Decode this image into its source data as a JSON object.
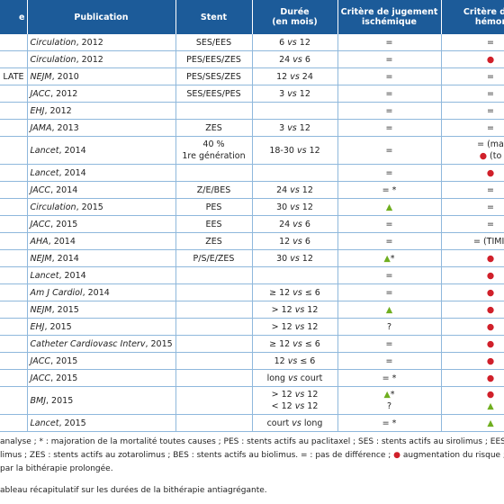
{
  "table": {
    "header": [
      "e",
      "Publication",
      "Stent",
      [
        "Durée",
        "(en mois)"
      ],
      [
        "Critère de jugement",
        "ischémique"
      ],
      [
        "Critère de j",
        "hémor"
      ]
    ],
    "rows": [
      [
        "",
        "Circulation, 2012",
        "SES/EES",
        "6 vs 12",
        "=",
        "="
      ],
      [
        "",
        "Circulation, 2012",
        "PES/EES/ZES",
        "24 vs 6",
        "=",
        "●"
      ],
      [
        "LATE",
        "NEJM, 2010",
        "PES/SES/ZES",
        "12 vs 24",
        "=",
        "="
      ],
      [
        "",
        "JACC, 2012",
        "SES/EES/PES",
        "3 vs 12",
        "=",
        "="
      ],
      [
        "",
        "EHJ, 2012",
        "",
        "",
        "=",
        "="
      ],
      [
        "",
        "JAMA, 2013",
        "ZES",
        "3 vs 12",
        "=",
        "="
      ],
      [
        "",
        "Lancet, 2014",
        [
          "40 %",
          "1re génération"
        ],
        "18-30 vs 12",
        "=",
        [
          "= (ma",
          "● (to"
        ]
      ],
      [
        "",
        "Lancet, 2014",
        "",
        "",
        "=",
        "●"
      ],
      [
        "",
        "JACC, 2014",
        "Z/E/BES",
        "24 vs 12",
        "= *",
        "="
      ],
      [
        "",
        "Circulation, 2015",
        "PES",
        "30 vs 12",
        "▲",
        "="
      ],
      [
        "",
        "JACC, 2015",
        "EES",
        "24 vs 6",
        "=",
        "="
      ],
      [
        "",
        "AHA, 2014",
        "ZES",
        "12 vs 6",
        "=",
        "= (TIMI)"
      ],
      [
        "",
        "NEJM, 2014",
        "P/S/E/ZES",
        "30 vs 12",
        "▲*",
        "●"
      ],
      [
        "",
        "Lancet, 2014",
        "",
        "",
        "=",
        "●"
      ],
      [
        "",
        "Am J Cardiol, 2014",
        "",
        "≥ 12 vs ≤ 6",
        "=",
        "●"
      ],
      [
        "",
        "NEJM, 2015",
        "",
        "> 12 vs 12",
        "▲",
        "●"
      ],
      [
        "",
        "EHJ, 2015",
        "",
        "> 12 vs 12",
        "?",
        "●"
      ],
      [
        "",
        "Catheter Cardiovasc Interv, 2015",
        "",
        "≥ 12 vs ≤ 6",
        "=",
        "●"
      ],
      [
        "",
        "JACC, 2015",
        "",
        "12 vs ≤ 6",
        "=",
        "●"
      ],
      [
        "",
        "JACC, 2015",
        "",
        "long vs court",
        "= *",
        "●"
      ],
      [
        "",
        "BMJ, 2015",
        "",
        [
          "> 12 vs 12",
          "< 12 vs 12"
        ],
        [
          "▲*",
          "?"
        ],
        [
          "●",
          "▲"
        ]
      ],
      [
        "",
        "Lancet, 2015",
        "",
        "court vs long",
        "= *",
        "▲"
      ]
    ]
  },
  "notes": [
    "analyse ; * : majoration de la mortalité toutes causes ; PES : stents actifs au paclitaxel ; SES : stents actifs au sirolimus ; EES : st",
    "limus ; ZES : stents actifs au zotarolimus ; BES : stents actifs au biolimus. = : pas de différence ; ● augmentation du risque ; ▲ :",
    "par la bithérapie prolongée."
  ],
  "caption": "ableau récapitulatif sur les durées de la bithérapie antiagrégante."
}
